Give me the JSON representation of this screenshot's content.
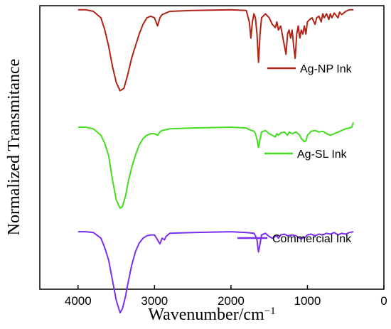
{
  "chart_data": {
    "type": "line",
    "xlabel": "Wavenumber/cm",
    "xlabel_sup": "−1",
    "ylabel": "Normalized Transmitance",
    "xlim": [
      4500,
      0
    ],
    "x_ticks": [
      4000,
      3000,
      2000,
      1000,
      0
    ],
    "x_tick_labels": [
      "4000",
      "3000",
      "2000",
      "1000",
      "0"
    ],
    "y_ticks_shown": false,
    "legend_placement": "right, beside each trace",
    "series": [
      {
        "name": "Ag-NP Ink",
        "color": "#b02418",
        "baseline": 3.0,
        "points": [
          [
            4000,
            0
          ],
          [
            3900,
            0
          ],
          [
            3800,
            -0.02
          ],
          [
            3700,
            -0.1
          ],
          [
            3650,
            -0.25
          ],
          [
            3600,
            -0.45
          ],
          [
            3550,
            -0.7
          ],
          [
            3500,
            -0.9
          ],
          [
            3450,
            -1.0
          ],
          [
            3400,
            -0.97
          ],
          [
            3350,
            -0.8
          ],
          [
            3300,
            -0.6
          ],
          [
            3250,
            -0.45
          ],
          [
            3200,
            -0.3
          ],
          [
            3150,
            -0.18
          ],
          [
            3100,
            -0.1
          ],
          [
            3050,
            -0.08
          ],
          [
            3000,
            -0.1
          ],
          [
            2960,
            -0.2
          ],
          [
            2930,
            -0.1
          ],
          [
            2900,
            -0.06
          ],
          [
            2850,
            -0.04
          ],
          [
            2800,
            -0.02
          ],
          [
            2500,
            -0.01
          ],
          [
            2000,
            0
          ],
          [
            1800,
            -0.01
          ],
          [
            1760,
            -0.15
          ],
          [
            1740,
            -0.35
          ],
          [
            1720,
            -0.15
          ],
          [
            1700,
            -0.05
          ],
          [
            1680,
            -0.1
          ],
          [
            1660,
            -0.3
          ],
          [
            1640,
            -0.65
          ],
          [
            1620,
            -0.3
          ],
          [
            1600,
            -0.1
          ],
          [
            1550,
            -0.05
          ],
          [
            1500,
            -0.1
          ],
          [
            1460,
            -0.18
          ],
          [
            1420,
            -0.22
          ],
          [
            1400,
            -0.15
          ],
          [
            1380,
            -0.25
          ],
          [
            1350,
            -0.2
          ],
          [
            1320,
            -0.35
          ],
          [
            1300,
            -0.45
          ],
          [
            1280,
            -0.55
          ],
          [
            1260,
            -0.3
          ],
          [
            1240,
            -0.25
          ],
          [
            1220,
            -0.35
          ],
          [
            1200,
            -0.25
          ],
          [
            1180,
            -0.45
          ],
          [
            1160,
            -0.6
          ],
          [
            1140,
            -0.3
          ],
          [
            1120,
            -0.2
          ],
          [
            1100,
            -0.35
          ],
          [
            1080,
            -0.25
          ],
          [
            1060,
            -0.3
          ],
          [
            1040,
            -0.2
          ],
          [
            1020,
            -0.3
          ],
          [
            1000,
            -0.15
          ],
          [
            970,
            -0.12
          ],
          [
            940,
            -0.1
          ],
          [
            900,
            -0.18
          ],
          [
            880,
            -0.1
          ],
          [
            850,
            -0.08
          ],
          [
            820,
            -0.15
          ],
          [
            800,
            -0.05
          ],
          [
            780,
            -0.1
          ],
          [
            750,
            -0.05
          ],
          [
            720,
            -0.12
          ],
          [
            700,
            -0.05
          ],
          [
            680,
            -0.1
          ],
          [
            650,
            -0.04
          ],
          [
            600,
            -0.1
          ],
          [
            580,
            -0.03
          ],
          [
            550,
            -0.06
          ],
          [
            500,
            -0.02
          ],
          [
            450,
            0
          ],
          [
            400,
            0
          ]
        ]
      },
      {
        "name": "Ag-SL Ink",
        "color": "#43dc1e",
        "baseline": 1.55,
        "points": [
          [
            4000,
            0
          ],
          [
            3900,
            0
          ],
          [
            3800,
            -0.02
          ],
          [
            3700,
            -0.1
          ],
          [
            3650,
            -0.2
          ],
          [
            3600,
            -0.35
          ],
          [
            3550,
            -0.65
          ],
          [
            3500,
            -0.9
          ],
          [
            3450,
            -1.0
          ],
          [
            3420,
            -0.98
          ],
          [
            3380,
            -0.85
          ],
          [
            3350,
            -0.7
          ],
          [
            3300,
            -0.5
          ],
          [
            3250,
            -0.35
          ],
          [
            3200,
            -0.22
          ],
          [
            3150,
            -0.14
          ],
          [
            3100,
            -0.1
          ],
          [
            3050,
            -0.08
          ],
          [
            3000,
            -0.08
          ],
          [
            2960,
            -0.1
          ],
          [
            2930,
            -0.06
          ],
          [
            2900,
            -0.04
          ],
          [
            2850,
            -0.03
          ],
          [
            2800,
            -0.02
          ],
          [
            2500,
            -0.01
          ],
          [
            2000,
            0
          ],
          [
            1800,
            -0.01
          ],
          [
            1760,
            -0.03
          ],
          [
            1700,
            -0.05
          ],
          [
            1680,
            -0.08
          ],
          [
            1660,
            -0.15
          ],
          [
            1640,
            -0.25
          ],
          [
            1620,
            -0.15
          ],
          [
            1600,
            -0.06
          ],
          [
            1550,
            -0.04
          ],
          [
            1500,
            -0.08
          ],
          [
            1460,
            -0.1
          ],
          [
            1420,
            -0.12
          ],
          [
            1400,
            -0.08
          ],
          [
            1380,
            -0.1
          ],
          [
            1350,
            -0.07
          ],
          [
            1300,
            -0.06
          ],
          [
            1260,
            -0.1
          ],
          [
            1240,
            -0.06
          ],
          [
            1200,
            -0.08
          ],
          [
            1150,
            -0.06
          ],
          [
            1100,
            -0.1
          ],
          [
            1080,
            -0.14
          ],
          [
            1060,
            -0.16
          ],
          [
            1040,
            -0.18
          ],
          [
            1020,
            -0.17
          ],
          [
            1000,
            -0.1
          ],
          [
            950,
            -0.05
          ],
          [
            900,
            -0.04
          ],
          [
            850,
            -0.06
          ],
          [
            800,
            -0.05
          ],
          [
            750,
            -0.08
          ],
          [
            700,
            -0.1
          ],
          [
            650,
            -0.08
          ],
          [
            600,
            -0.06
          ],
          [
            550,
            -0.04
          ],
          [
            500,
            -0.02
          ],
          [
            450,
            -0.01
          ],
          [
            420,
            0
          ],
          [
            400,
            0.06
          ]
        ]
      },
      {
        "name": "Commercial Ink",
        "color": "#7a2ef0",
        "baseline": 0.26,
        "points": [
          [
            4000,
            0
          ],
          [
            3900,
            0
          ],
          [
            3800,
            -0.01
          ],
          [
            3700,
            -0.08
          ],
          [
            3650,
            -0.2
          ],
          [
            3600,
            -0.35
          ],
          [
            3550,
            -0.6
          ],
          [
            3500,
            -0.85
          ],
          [
            3450,
            -1.0
          ],
          [
            3420,
            -0.95
          ],
          [
            3380,
            -0.8
          ],
          [
            3350,
            -0.65
          ],
          [
            3300,
            -0.42
          ],
          [
            3250,
            -0.25
          ],
          [
            3200,
            -0.14
          ],
          [
            3150,
            -0.08
          ],
          [
            3100,
            -0.05
          ],
          [
            3050,
            -0.04
          ],
          [
            3000,
            -0.04
          ],
          [
            2960,
            -0.1
          ],
          [
            2930,
            -0.15
          ],
          [
            2900,
            -0.08
          ],
          [
            2870,
            -0.1
          ],
          [
            2850,
            -0.06
          ],
          [
            2800,
            -0.02
          ],
          [
            2500,
            -0.01
          ],
          [
            2000,
            0
          ],
          [
            1800,
            -0.01
          ],
          [
            1700,
            -0.02
          ],
          [
            1680,
            -0.05
          ],
          [
            1660,
            -0.1
          ],
          [
            1640,
            -0.25
          ],
          [
            1620,
            -0.15
          ],
          [
            1600,
            -0.04
          ],
          [
            1550,
            -0.02
          ],
          [
            1500,
            -0.06
          ],
          [
            1460,
            -0.08
          ],
          [
            1420,
            -0.06
          ],
          [
            1400,
            -0.05
          ],
          [
            1380,
            -0.08
          ],
          [
            1350,
            -0.04
          ],
          [
            1300,
            -0.03
          ],
          [
            1260,
            -0.05
          ],
          [
            1200,
            -0.04
          ],
          [
            1150,
            -0.05
          ],
          [
            1100,
            -0.08
          ],
          [
            1080,
            -0.09
          ],
          [
            1060,
            -0.07
          ],
          [
            1040,
            -0.08
          ],
          [
            1020,
            -0.06
          ],
          [
            1000,
            -0.04
          ],
          [
            950,
            -0.03
          ],
          [
            900,
            -0.05
          ],
          [
            850,
            -0.03
          ],
          [
            800,
            -0.04
          ],
          [
            750,
            -0.02
          ],
          [
            700,
            -0.03
          ],
          [
            650,
            -0.01
          ],
          [
            600,
            -0.04
          ],
          [
            550,
            -0.02
          ],
          [
            500,
            -0.03
          ],
          [
            450,
            -0.01
          ],
          [
            400,
            0
          ]
        ]
      }
    ]
  }
}
